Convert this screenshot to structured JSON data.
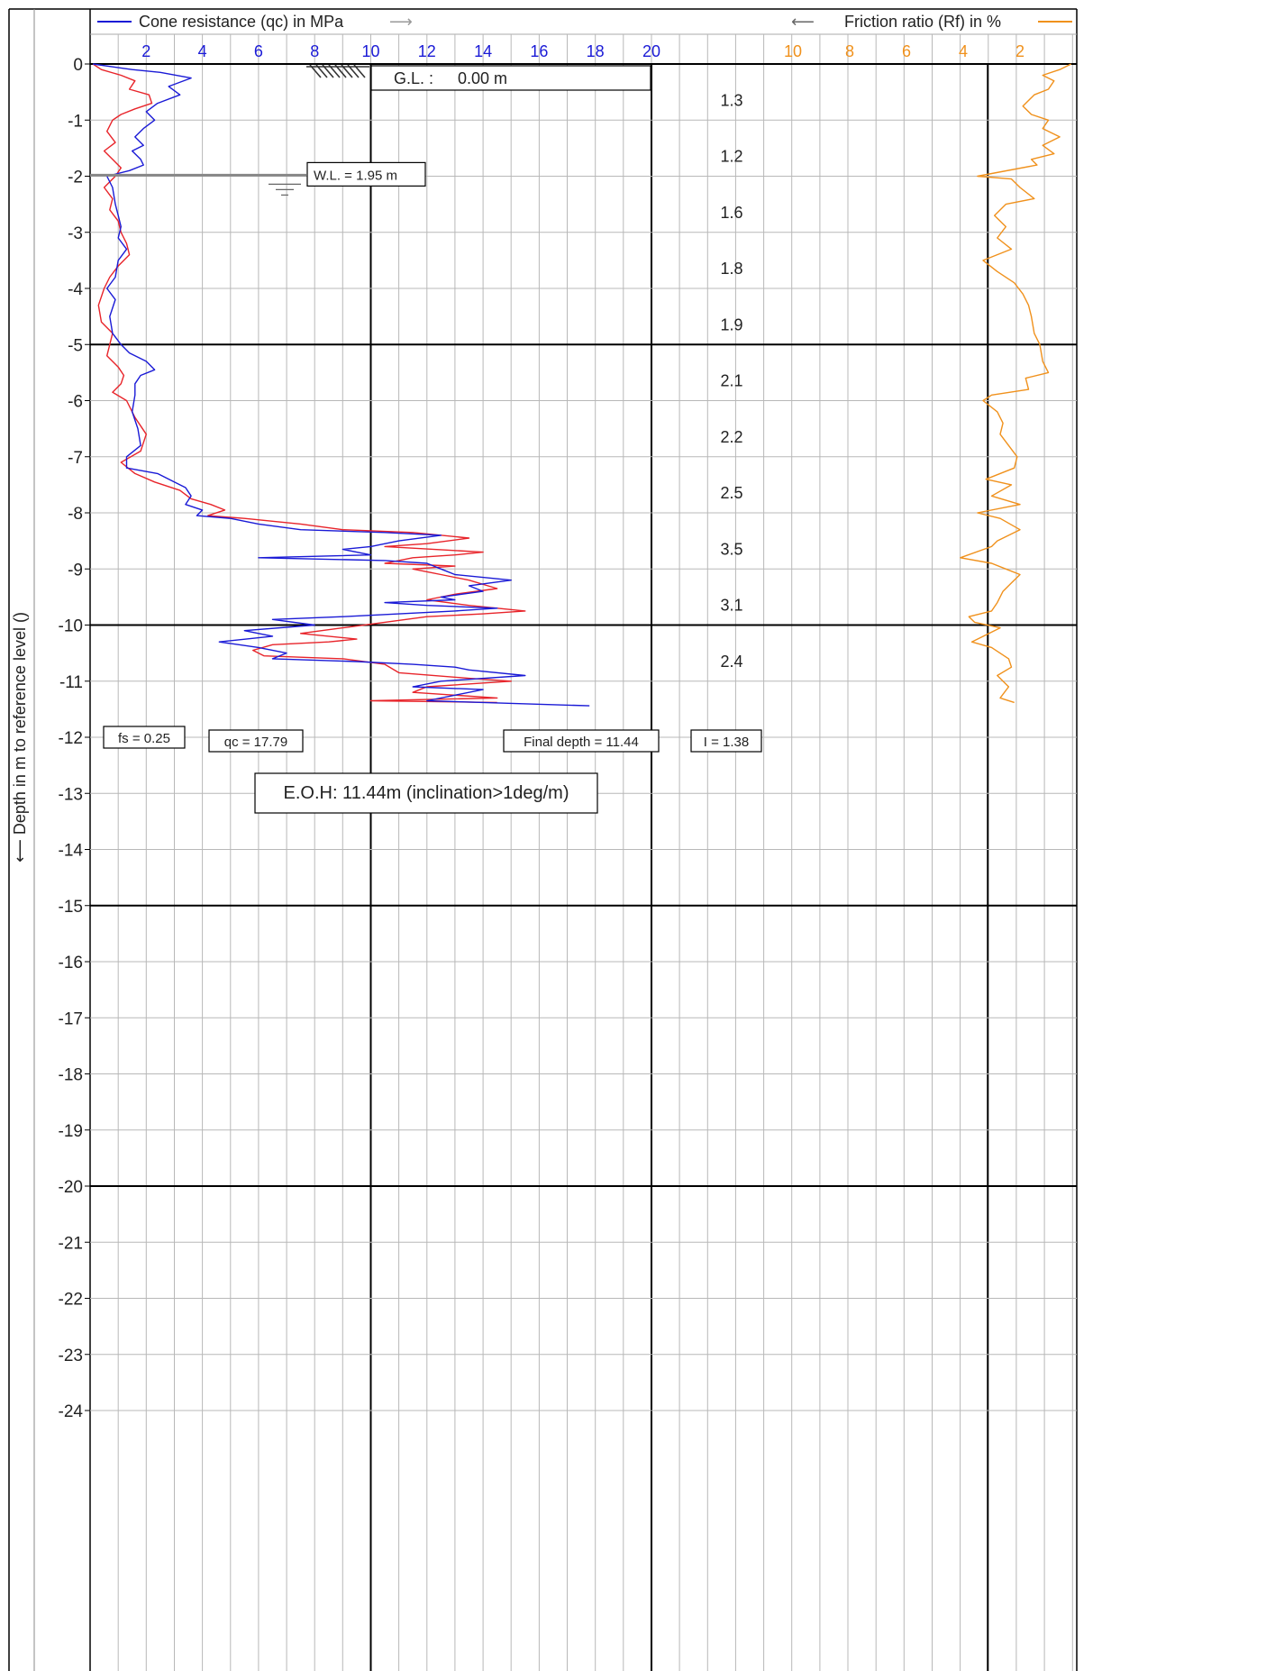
{
  "chart_data": {
    "type": "line",
    "title": "",
    "ylabel": "Depth in m to reference level ()",
    "ylabel_arrow": "⟵",
    "y_range": [
      -24,
      0
    ],
    "y_ticks": [
      0,
      -1,
      -2,
      -3,
      -4,
      -5,
      -6,
      -7,
      -8,
      -9,
      -10,
      -11,
      -12,
      -13,
      -14,
      -15,
      -16,
      -17,
      -18,
      -19,
      -20,
      -21,
      -22,
      -23,
      -24
    ],
    "qc_axis": {
      "label": "Cone resistance (qc) in MPa",
      "arrow": "⟶",
      "range": [
        0,
        20
      ],
      "ticks": [
        2,
        4,
        6,
        8,
        10,
        12,
        14,
        16,
        18,
        20
      ],
      "color": "#1a1ad6"
    },
    "rf_axis": {
      "label": "Friction ratio (Rf) in %",
      "arrow": "⟵",
      "range": [
        0,
        12
      ],
      "reversed": true,
      "ticks": [
        10,
        8,
        6,
        4,
        2
      ],
      "color": "#f0911c"
    },
    "fs_color": "#e8242a",
    "grid": true,
    "series": [
      {
        "key": "qc",
        "points": [
          [
            0.1,
            0
          ],
          [
            1.5,
            -0.1
          ],
          [
            2.5,
            -0.15
          ],
          [
            3.6,
            -0.25
          ],
          [
            2.8,
            -0.4
          ],
          [
            3.2,
            -0.55
          ],
          [
            2.4,
            -0.7
          ],
          [
            2.0,
            -0.85
          ],
          [
            2.3,
            -1.0
          ],
          [
            1.9,
            -1.15
          ],
          [
            1.6,
            -1.3
          ],
          [
            1.9,
            -1.45
          ],
          [
            1.5,
            -1.55
          ],
          [
            1.8,
            -1.7
          ],
          [
            1.9,
            -1.8
          ],
          [
            1.4,
            -1.9
          ],
          [
            0.6,
            -2.0
          ],
          [
            0.8,
            -2.2
          ],
          [
            0.9,
            -2.5
          ],
          [
            1.0,
            -2.7
          ],
          [
            1.1,
            -2.9
          ],
          [
            1.0,
            -3.1
          ],
          [
            1.3,
            -3.3
          ],
          [
            1.0,
            -3.5
          ],
          [
            0.9,
            -3.8
          ],
          [
            0.6,
            -4.0
          ],
          [
            0.9,
            -4.2
          ],
          [
            0.7,
            -4.5
          ],
          [
            0.8,
            -4.8
          ],
          [
            1.1,
            -5.0
          ],
          [
            1.4,
            -5.15
          ],
          [
            2.0,
            -5.3
          ],
          [
            2.3,
            -5.45
          ],
          [
            1.8,
            -5.55
          ],
          [
            1.6,
            -5.7
          ],
          [
            1.6,
            -5.9
          ],
          [
            1.5,
            -6.2
          ],
          [
            1.7,
            -6.5
          ],
          [
            1.8,
            -6.8
          ],
          [
            1.3,
            -7.0
          ],
          [
            1.3,
            -7.2
          ],
          [
            2.4,
            -7.3
          ],
          [
            3.0,
            -7.45
          ],
          [
            3.4,
            -7.55
          ],
          [
            3.6,
            -7.7
          ],
          [
            3.4,
            -7.85
          ],
          [
            4.0,
            -7.95
          ],
          [
            3.8,
            -8.05
          ],
          [
            5.0,
            -8.1
          ],
          [
            6.0,
            -8.2
          ],
          [
            7.5,
            -8.3
          ],
          [
            10.5,
            -8.35
          ],
          [
            12.5,
            -8.4
          ],
          [
            11.0,
            -8.5
          ],
          [
            10.0,
            -8.6
          ],
          [
            9.0,
            -8.65
          ],
          [
            10.0,
            -8.75
          ],
          [
            6.0,
            -8.8
          ],
          [
            10.5,
            -8.85
          ],
          [
            12.0,
            -8.9
          ],
          [
            12.5,
            -9.0
          ],
          [
            13.0,
            -9.1
          ],
          [
            15.0,
            -9.2
          ],
          [
            13.5,
            -9.3
          ],
          [
            14.0,
            -9.4
          ],
          [
            12.5,
            -9.5
          ],
          [
            13.0,
            -9.55
          ],
          [
            10.5,
            -9.6
          ],
          [
            12.0,
            -9.65
          ],
          [
            14.5,
            -9.7
          ],
          [
            13.0,
            -9.75
          ],
          [
            11.0,
            -9.8
          ],
          [
            9.0,
            -9.85
          ],
          [
            6.5,
            -9.9
          ],
          [
            8.0,
            -10.0
          ],
          [
            5.5,
            -10.1
          ],
          [
            6.5,
            -10.2
          ],
          [
            4.6,
            -10.3
          ],
          [
            6.0,
            -10.4
          ],
          [
            7.0,
            -10.5
          ],
          [
            6.5,
            -10.6
          ],
          [
            9.5,
            -10.65
          ],
          [
            11.5,
            -10.7
          ],
          [
            13.0,
            -10.75
          ],
          [
            13.5,
            -10.8
          ],
          [
            15.5,
            -10.9
          ],
          [
            12.5,
            -11.0
          ],
          [
            11.5,
            -11.1
          ],
          [
            14.0,
            -11.15
          ],
          [
            13.0,
            -11.25
          ],
          [
            12.0,
            -11.35
          ],
          [
            17.79,
            -11.44
          ]
        ]
      },
      {
        "key": "fs",
        "points": [
          [
            0.1,
            0
          ],
          [
            0.4,
            -0.1
          ],
          [
            1.1,
            -0.2
          ],
          [
            1.6,
            -0.3
          ],
          [
            1.4,
            -0.45
          ],
          [
            2.1,
            -0.55
          ],
          [
            2.2,
            -0.7
          ],
          [
            1.6,
            -0.8
          ],
          [
            1.1,
            -0.9
          ],
          [
            0.8,
            -1.0
          ],
          [
            0.6,
            -1.2
          ],
          [
            0.9,
            -1.4
          ],
          [
            0.5,
            -1.55
          ],
          [
            0.8,
            -1.7
          ],
          [
            1.1,
            -1.85
          ],
          [
            0.9,
            -2.0
          ],
          [
            0.5,
            -2.2
          ],
          [
            0.8,
            -2.4
          ],
          [
            0.7,
            -2.6
          ],
          [
            1.0,
            -2.8
          ],
          [
            1.1,
            -3.0
          ],
          [
            1.3,
            -3.2
          ],
          [
            1.4,
            -3.4
          ],
          [
            1.0,
            -3.6
          ],
          [
            0.7,
            -3.8
          ],
          [
            0.5,
            -4.0
          ],
          [
            0.3,
            -4.3
          ],
          [
            0.4,
            -4.6
          ],
          [
            0.8,
            -4.8
          ],
          [
            0.7,
            -5.0
          ],
          [
            0.6,
            -5.2
          ],
          [
            1.0,
            -5.4
          ],
          [
            1.2,
            -5.55
          ],
          [
            1.1,
            -5.7
          ],
          [
            0.8,
            -5.85
          ],
          [
            1.3,
            -6.0
          ],
          [
            1.6,
            -6.3
          ],
          [
            2.0,
            -6.6
          ],
          [
            1.8,
            -6.9
          ],
          [
            1.1,
            -7.1
          ],
          [
            1.6,
            -7.3
          ],
          [
            2.3,
            -7.45
          ],
          [
            3.2,
            -7.6
          ],
          [
            3.6,
            -7.75
          ],
          [
            4.3,
            -7.85
          ],
          [
            4.8,
            -7.95
          ],
          [
            4.2,
            -8.05
          ],
          [
            5.5,
            -8.1
          ],
          [
            7.5,
            -8.2
          ],
          [
            9.0,
            -8.3
          ],
          [
            11.5,
            -8.35
          ],
          [
            13.5,
            -8.45
          ],
          [
            12.0,
            -8.55
          ],
          [
            10.5,
            -8.6
          ],
          [
            14.0,
            -8.7
          ],
          [
            13.0,
            -8.75
          ],
          [
            11.5,
            -8.8
          ],
          [
            10.5,
            -8.9
          ],
          [
            13.0,
            -8.95
          ],
          [
            11.5,
            -9.0
          ],
          [
            12.5,
            -9.1
          ],
          [
            13.5,
            -9.2
          ],
          [
            14.5,
            -9.35
          ],
          [
            13.0,
            -9.45
          ],
          [
            12.0,
            -9.55
          ],
          [
            13.5,
            -9.65
          ],
          [
            15.5,
            -9.75
          ],
          [
            14.0,
            -9.8
          ],
          [
            12.0,
            -9.85
          ],
          [
            10.5,
            -9.95
          ],
          [
            9.0,
            -10.05
          ],
          [
            7.5,
            -10.15
          ],
          [
            9.5,
            -10.25
          ],
          [
            8.5,
            -10.3
          ],
          [
            6.5,
            -10.35
          ],
          [
            5.8,
            -10.45
          ],
          [
            6.2,
            -10.55
          ],
          [
            9.0,
            -10.6
          ],
          [
            10.5,
            -10.7
          ],
          [
            11.0,
            -10.85
          ],
          [
            13.5,
            -10.95
          ],
          [
            15.0,
            -11.0
          ],
          [
            12.0,
            -11.1
          ],
          [
            11.5,
            -11.2
          ],
          [
            13.0,
            -11.25
          ],
          [
            14.5,
            -11.3
          ],
          [
            10.0,
            -11.35
          ],
          [
            14.5,
            -11.38
          ]
        ]
      },
      {
        "key": "rf",
        "points": [
          [
            0.2,
            0
          ],
          [
            0.6,
            -0.1
          ],
          [
            1.2,
            -0.2
          ],
          [
            0.8,
            -0.3
          ],
          [
            1.0,
            -0.45
          ],
          [
            1.5,
            -0.55
          ],
          [
            1.9,
            -0.75
          ],
          [
            1.6,
            -0.9
          ],
          [
            1.0,
            -1.0
          ],
          [
            1.2,
            -1.15
          ],
          [
            0.6,
            -1.3
          ],
          [
            1.2,
            -1.45
          ],
          [
            0.8,
            -1.6
          ],
          [
            1.6,
            -1.7
          ],
          [
            1.4,
            -1.8
          ],
          [
            3.5,
            -2.0
          ],
          [
            2.3,
            -2.05
          ],
          [
            2.0,
            -2.2
          ],
          [
            1.5,
            -2.4
          ],
          [
            2.5,
            -2.5
          ],
          [
            2.9,
            -2.7
          ],
          [
            2.5,
            -2.9
          ],
          [
            2.8,
            -3.1
          ],
          [
            2.3,
            -3.3
          ],
          [
            3.3,
            -3.5
          ],
          [
            2.8,
            -3.7
          ],
          [
            2.2,
            -3.9
          ],
          [
            1.9,
            -4.1
          ],
          [
            1.7,
            -4.3
          ],
          [
            1.6,
            -4.5
          ],
          [
            1.5,
            -4.8
          ],
          [
            1.3,
            -5.0
          ],
          [
            1.2,
            -5.3
          ],
          [
            1.0,
            -5.5
          ],
          [
            1.8,
            -5.6
          ],
          [
            1.7,
            -5.8
          ],
          [
            3.0,
            -5.9
          ],
          [
            3.3,
            -6.0
          ],
          [
            2.8,
            -6.2
          ],
          [
            2.6,
            -6.4
          ],
          [
            2.7,
            -6.6
          ],
          [
            2.4,
            -6.8
          ],
          [
            2.1,
            -7.0
          ],
          [
            2.2,
            -7.2
          ],
          [
            3.2,
            -7.4
          ],
          [
            2.3,
            -7.5
          ],
          [
            3.0,
            -7.7
          ],
          [
            2.0,
            -7.85
          ],
          [
            3.5,
            -8.0
          ],
          [
            2.7,
            -8.1
          ],
          [
            2.0,
            -8.3
          ],
          [
            2.8,
            -8.5
          ],
          [
            3.0,
            -8.6
          ],
          [
            4.1,
            -8.8
          ],
          [
            3.0,
            -8.9
          ],
          [
            2.5,
            -9.0
          ],
          [
            2.0,
            -9.1
          ],
          [
            2.3,
            -9.25
          ],
          [
            2.6,
            -9.4
          ],
          [
            2.8,
            -9.6
          ],
          [
            3.0,
            -9.75
          ],
          [
            3.8,
            -9.85
          ],
          [
            3.6,
            -9.95
          ],
          [
            2.7,
            -10.05
          ],
          [
            3.7,
            -10.3
          ],
          [
            3.0,
            -10.4
          ],
          [
            2.4,
            -10.6
          ],
          [
            2.3,
            -10.75
          ],
          [
            2.8,
            -10.9
          ],
          [
            2.4,
            -11.1
          ],
          [
            2.7,
            -11.3
          ],
          [
            2.2,
            -11.38
          ]
        ]
      }
    ],
    "layer_values": [
      {
        "depth": -0.65,
        "value": "1.3"
      },
      {
        "depth": -1.65,
        "value": "1.2"
      },
      {
        "depth": -2.65,
        "value": "1.6"
      },
      {
        "depth": -3.65,
        "value": "1.8"
      },
      {
        "depth": -4.65,
        "value": "1.9"
      },
      {
        "depth": -5.65,
        "value": "2.1"
      },
      {
        "depth": -6.65,
        "value": "2.2"
      },
      {
        "depth": -7.65,
        "value": "2.5"
      },
      {
        "depth": -8.65,
        "value": "3.5"
      },
      {
        "depth": -9.65,
        "value": "3.1"
      },
      {
        "depth": -10.65,
        "value": "2.4"
      }
    ],
    "ground_level": {
      "label": "G.L. :",
      "value": "0.00  m"
    },
    "water_level": {
      "depth": -1.95,
      "label": "W.L. = 1.95 m"
    },
    "readouts": {
      "fs": "fs = 0.25",
      "qc": "qc = 17.79",
      "final_depth": "Final depth = 11.44",
      "inclination": "I = 1.38"
    },
    "note": "E.O.H: 11.44m (inclination>1deg/m)"
  }
}
